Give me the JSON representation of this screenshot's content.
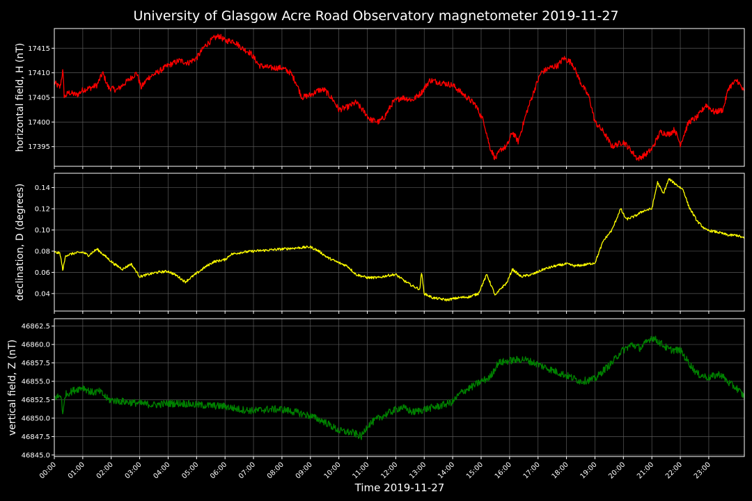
{
  "colors": {
    "background": "#000000",
    "text": "#ffffff",
    "grid": "#5a5a5a",
    "frame": "#ffffff"
  },
  "chart_data": {
    "type": "line",
    "title": "University of Glasgow Acre Road Observatory magnetometer 2019-11-27",
    "xlabel": "Time 2019-11-27",
    "x_ticks": [
      "00:00",
      "01:00",
      "02:00",
      "03:00",
      "04:00",
      "05:00",
      "06:00",
      "07:00",
      "08:00",
      "09:00",
      "10:00",
      "11:00",
      "12:00",
      "13:00",
      "14:00",
      "15:00",
      "16:00",
      "17:00",
      "18:00",
      "19:00",
      "20:00",
      "21:00",
      "22:00",
      "23:00"
    ],
    "xlim_hours": [
      0,
      24
    ],
    "grid": true,
    "panels": [
      {
        "ylabel": "horizontal field, H (nT)",
        "color": "#ff0000",
        "ylim": [
          17391,
          17419
        ],
        "y_ticks": [
          17395,
          17400,
          17405,
          17410,
          17415
        ],
        "y_tick_labels": [
          "17395",
          "17400",
          "17405",
          "17410",
          "17415"
        ],
        "noise": 0.6,
        "keypoints": [
          [
            0.0,
            17408
          ],
          [
            0.2,
            17407
          ],
          [
            0.3,
            17410.5
          ],
          [
            0.35,
            17405
          ],
          [
            0.5,
            17406
          ],
          [
            0.8,
            17405.5
          ],
          [
            1.0,
            17406.5
          ],
          [
            1.3,
            17407
          ],
          [
            1.5,
            17407.5
          ],
          [
            1.7,
            17410
          ],
          [
            1.9,
            17407
          ],
          [
            2.2,
            17406.5
          ],
          [
            2.5,
            17408
          ],
          [
            2.7,
            17409
          ],
          [
            2.9,
            17410
          ],
          [
            3.05,
            17407
          ],
          [
            3.3,
            17409
          ],
          [
            3.6,
            17410
          ],
          [
            4.0,
            17411.5
          ],
          [
            4.4,
            17412.5
          ],
          [
            4.7,
            17412
          ],
          [
            5.0,
            17413
          ],
          [
            5.3,
            17415.5
          ],
          [
            5.6,
            17417
          ],
          [
            5.8,
            17417.5
          ],
          [
            6.0,
            17416.5
          ],
          [
            6.3,
            17416.5
          ],
          [
            6.6,
            17415
          ],
          [
            6.9,
            17414
          ],
          [
            7.2,
            17411.5
          ],
          [
            7.6,
            17411
          ],
          [
            8.0,
            17411
          ],
          [
            8.3,
            17410
          ],
          [
            8.5,
            17408
          ],
          [
            8.7,
            17405
          ],
          [
            9.0,
            17405.5
          ],
          [
            9.3,
            17406.5
          ],
          [
            9.5,
            17406.5
          ],
          [
            9.8,
            17404.5
          ],
          [
            10.0,
            17402.5
          ],
          [
            10.3,
            17403
          ],
          [
            10.6,
            17404
          ],
          [
            10.9,
            17402
          ],
          [
            11.1,
            17400.5
          ],
          [
            11.4,
            17400
          ],
          [
            11.6,
            17401
          ],
          [
            11.9,
            17404
          ],
          [
            12.2,
            17405
          ],
          [
            12.6,
            17404.5
          ],
          [
            12.9,
            17406
          ],
          [
            13.2,
            17408.5
          ],
          [
            13.6,
            17408
          ],
          [
            14.0,
            17407.5
          ],
          [
            14.4,
            17405.5
          ],
          [
            14.8,
            17403.5
          ],
          [
            15.1,
            17400
          ],
          [
            15.3,
            17395
          ],
          [
            15.5,
            17392.5
          ],
          [
            15.7,
            17394.5
          ],
          [
            15.9,
            17395
          ],
          [
            16.1,
            17398
          ],
          [
            16.3,
            17396
          ],
          [
            16.6,
            17402
          ],
          [
            16.9,
            17407
          ],
          [
            17.1,
            17410
          ],
          [
            17.4,
            17411
          ],
          [
            17.7,
            17411.5
          ],
          [
            17.9,
            17413
          ],
          [
            18.2,
            17412
          ],
          [
            18.5,
            17408
          ],
          [
            18.8,
            17405
          ],
          [
            19.0,
            17400
          ],
          [
            19.3,
            17398
          ],
          [
            19.6,
            17395
          ],
          [
            20.0,
            17396
          ],
          [
            20.3,
            17394
          ],
          [
            20.5,
            17392.5
          ],
          [
            20.8,
            17393.5
          ],
          [
            21.0,
            17394.5
          ],
          [
            21.3,
            17398
          ],
          [
            21.6,
            17397.5
          ],
          [
            21.8,
            17398.5
          ],
          [
            22.0,
            17395.5
          ],
          [
            22.3,
            17400
          ],
          [
            22.6,
            17401
          ],
          [
            22.9,
            17403.5
          ],
          [
            23.2,
            17402
          ],
          [
            23.5,
            17402.5
          ],
          [
            23.7,
            17407
          ],
          [
            24.0,
            17408.5
          ],
          [
            24.25,
            17406
          ]
        ]
      },
      {
        "ylabel": "declination, D (degrees)",
        "color": "#ffff00",
        "ylim": [
          0.0235,
          0.1535
        ],
        "y_ticks": [
          0.04,
          0.06,
          0.08,
          0.1,
          0.12,
          0.14
        ],
        "y_tick_labels": [
          "0.04",
          "0.06",
          "0.08",
          "0.10",
          "0.12",
          "0.14"
        ],
        "noise": 0.0012,
        "keypoints": [
          [
            0.0,
            0.079
          ],
          [
            0.2,
            0.078
          ],
          [
            0.3,
            0.062
          ],
          [
            0.4,
            0.076
          ],
          [
            0.7,
            0.078
          ],
          [
            1.0,
            0.079
          ],
          [
            1.2,
            0.076
          ],
          [
            1.5,
            0.082
          ],
          [
            1.8,
            0.075
          ],
          [
            2.1,
            0.068
          ],
          [
            2.4,
            0.063
          ],
          [
            2.7,
            0.068
          ],
          [
            3.0,
            0.056
          ],
          [
            3.3,
            0.058
          ],
          [
            3.6,
            0.06
          ],
          [
            4.0,
            0.061
          ],
          [
            4.3,
            0.057
          ],
          [
            4.6,
            0.051
          ],
          [
            4.9,
            0.057
          ],
          [
            5.3,
            0.065
          ],
          [
            5.6,
            0.07
          ],
          [
            6.0,
            0.072
          ],
          [
            6.2,
            0.077
          ],
          [
            6.6,
            0.079
          ],
          [
            7.0,
            0.08
          ],
          [
            7.5,
            0.081
          ],
          [
            8.0,
            0.082
          ],
          [
            8.5,
            0.083
          ],
          [
            9.0,
            0.084
          ],
          [
            9.3,
            0.08
          ],
          [
            9.6,
            0.074
          ],
          [
            10.0,
            0.069
          ],
          [
            10.3,
            0.066
          ],
          [
            10.6,
            0.058
          ],
          [
            11.0,
            0.055
          ],
          [
            11.4,
            0.055
          ],
          [
            11.7,
            0.057
          ],
          [
            12.0,
            0.058
          ],
          [
            12.3,
            0.052
          ],
          [
            12.6,
            0.047
          ],
          [
            12.85,
            0.044
          ],
          [
            12.9,
            0.061
          ],
          [
            13.0,
            0.04
          ],
          [
            13.3,
            0.036
          ],
          [
            13.8,
            0.034
          ],
          [
            14.2,
            0.036
          ],
          [
            14.6,
            0.037
          ],
          [
            14.9,
            0.04
          ],
          [
            15.2,
            0.058
          ],
          [
            15.5,
            0.038
          ],
          [
            15.7,
            0.045
          ],
          [
            15.9,
            0.05
          ],
          [
            16.1,
            0.063
          ],
          [
            16.4,
            0.056
          ],
          [
            16.8,
            0.058
          ],
          [
            17.2,
            0.063
          ],
          [
            17.6,
            0.066
          ],
          [
            18.0,
            0.068
          ],
          [
            18.3,
            0.066
          ],
          [
            18.6,
            0.067
          ],
          [
            19.0,
            0.069
          ],
          [
            19.3,
            0.09
          ],
          [
            19.6,
            0.1
          ],
          [
            19.9,
            0.12
          ],
          [
            20.1,
            0.11
          ],
          [
            20.4,
            0.113
          ],
          [
            20.7,
            0.118
          ],
          [
            21.0,
            0.12
          ],
          [
            21.2,
            0.145
          ],
          [
            21.4,
            0.134
          ],
          [
            21.6,
            0.148
          ],
          [
            21.9,
            0.142
          ],
          [
            22.1,
            0.138
          ],
          [
            22.3,
            0.122
          ],
          [
            22.6,
            0.108
          ],
          [
            22.9,
            0.1
          ],
          [
            23.3,
            0.098
          ],
          [
            23.7,
            0.095
          ],
          [
            24.0,
            0.095
          ],
          [
            24.25,
            0.092
          ]
        ]
      },
      {
        "ylabel": "vertical field, Z (nT)",
        "color": "#008000",
        "ylim": [
          46844.8,
          46863.5
        ],
        "y_ticks": [
          46845.0,
          46847.5,
          46850.0,
          46852.5,
          46855.0,
          46857.5,
          46860.0,
          46862.5
        ],
        "y_tick_labels": [
          "46845.0",
          "46847.5",
          "46850.0",
          "46852.5",
          "46855.0",
          "46857.5",
          "46860.0",
          "46862.5"
        ],
        "noise": 0.5,
        "keypoints": [
          [
            0.0,
            46852.8
          ],
          [
            0.25,
            46853.0
          ],
          [
            0.3,
            46850.2
          ],
          [
            0.38,
            46853.2
          ],
          [
            0.7,
            46853.8
          ],
          [
            1.0,
            46854.2
          ],
          [
            1.3,
            46853.5
          ],
          [
            1.6,
            46853.6
          ],
          [
            1.9,
            46852.5
          ],
          [
            2.3,
            46852.3
          ],
          [
            3.0,
            46852.0
          ],
          [
            3.5,
            46851.8
          ],
          [
            4.0,
            46852.0
          ],
          [
            4.5,
            46852.0
          ],
          [
            5.0,
            46851.8
          ],
          [
            6.0,
            46851.6
          ],
          [
            6.5,
            46851.2
          ],
          [
            7.0,
            46851.0
          ],
          [
            7.5,
            46851.2
          ],
          [
            8.0,
            46851.2
          ],
          [
            8.5,
            46850.8
          ],
          [
            9.0,
            46850.3
          ],
          [
            9.5,
            46849.5
          ],
          [
            10.0,
            46848.3
          ],
          [
            10.5,
            46848.0
          ],
          [
            10.8,
            46847.5
          ],
          [
            11.0,
            46849.0
          ],
          [
            11.4,
            46850.0
          ],
          [
            11.8,
            46850.8
          ],
          [
            12.2,
            46851.5
          ],
          [
            12.6,
            46850.8
          ],
          [
            13.0,
            46851.2
          ],
          [
            13.5,
            46851.6
          ],
          [
            14.0,
            46852.2
          ],
          [
            14.3,
            46853.5
          ],
          [
            14.7,
            46854.3
          ],
          [
            15.0,
            46855.0
          ],
          [
            15.3,
            46855.5
          ],
          [
            15.6,
            46857.5
          ],
          [
            16.0,
            46857.8
          ],
          [
            16.5,
            46858.0
          ],
          [
            17.0,
            46857.3
          ],
          [
            17.5,
            46856.5
          ],
          [
            18.0,
            46855.8
          ],
          [
            18.5,
            46855.0
          ],
          [
            19.0,
            46855.3
          ],
          [
            19.3,
            46856.5
          ],
          [
            19.6,
            46857.5
          ],
          [
            19.9,
            46859.0
          ],
          [
            20.3,
            46860.0
          ],
          [
            20.6,
            46859.5
          ],
          [
            21.0,
            46861.0
          ],
          [
            21.3,
            46860.2
          ],
          [
            21.6,
            46859.3
          ],
          [
            22.0,
            46859.2
          ],
          [
            22.3,
            46857.5
          ],
          [
            22.6,
            46856.0
          ],
          [
            23.0,
            46855.5
          ],
          [
            23.4,
            46856.0
          ],
          [
            23.7,
            46854.8
          ],
          [
            24.0,
            46854.0
          ],
          [
            24.25,
            46852.9
          ]
        ]
      }
    ]
  }
}
